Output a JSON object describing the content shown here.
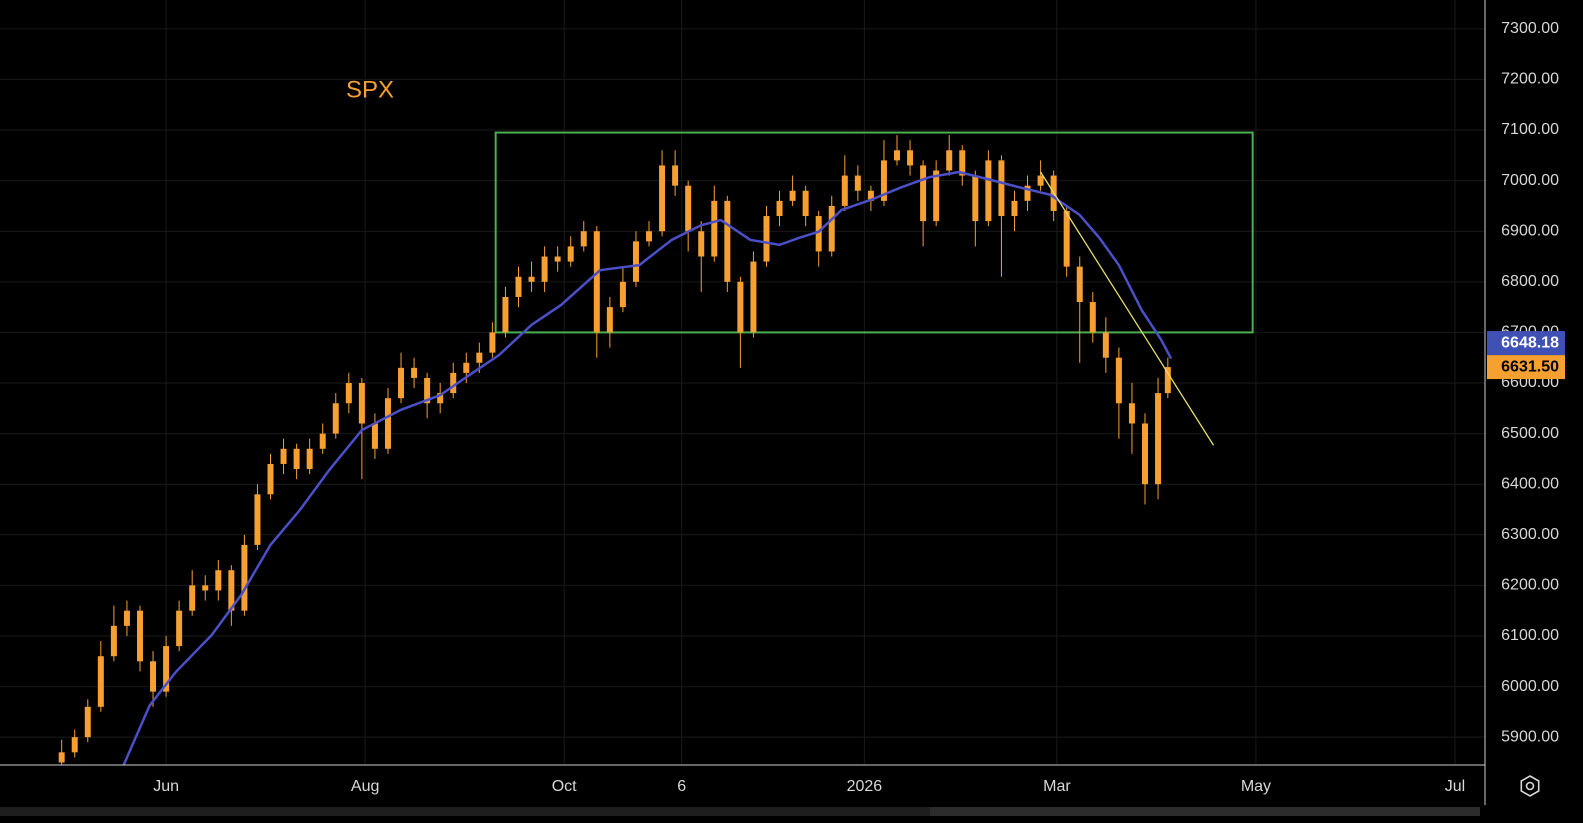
{
  "chart_data": {
    "type": "candlestick",
    "title": "SPX",
    "title_color": "#f5a030",
    "color": "#f5a030",
    "x": [
      -32,
      -28,
      -24,
      -20,
      -16,
      -12,
      -8,
      -4,
      0,
      4,
      8,
      12,
      16,
      20,
      24,
      28,
      32,
      36,
      40,
      44,
      48,
      52,
      56,
      60,
      64,
      68,
      72,
      76,
      80,
      84,
      88,
      92,
      96,
      100,
      104,
      108,
      112,
      116,
      120,
      124,
      128,
      132,
      136,
      140,
      144,
      148,
      152,
      156,
      160,
      164,
      168,
      172,
      176,
      180,
      184,
      188,
      192,
      196,
      200,
      204,
      208,
      212,
      216,
      220,
      224,
      228,
      232,
      236,
      240,
      244,
      248,
      252,
      256,
      260,
      264,
      268,
      272,
      276,
      280,
      284,
      288,
      292,
      296,
      300,
      304,
      307
    ],
    "ohlc": [
      [
        5850,
        5895,
        5840,
        5870
      ],
      [
        5870,
        5915,
        5860,
        5900
      ],
      [
        5900,
        5975,
        5890,
        5960
      ],
      [
        5960,
        6090,
        5950,
        6060
      ],
      [
        6060,
        6160,
        6050,
        6120
      ],
      [
        6120,
        6170,
        6100,
        6150
      ],
      [
        6150,
        6160,
        6030,
        6050
      ],
      [
        6050,
        6070,
        5960,
        5990
      ],
      [
        5990,
        6100,
        5980,
        6080
      ],
      [
        6080,
        6170,
        6070,
        6150
      ],
      [
        6150,
        6230,
        6140,
        6200
      ],
      [
        6200,
        6220,
        6170,
        6190
      ],
      [
        6190,
        6250,
        6170,
        6230
      ],
      [
        6230,
        6240,
        6120,
        6150
      ],
      [
        6150,
        6300,
        6140,
        6280
      ],
      [
        6280,
        6400,
        6270,
        6380
      ],
      [
        6380,
        6460,
        6370,
        6440
      ],
      [
        6440,
        6490,
        6420,
        6470
      ],
      [
        6470,
        6480,
        6410,
        6430
      ],
      [
        6430,
        6490,
        6420,
        6470
      ],
      [
        6470,
        6520,
        6460,
        6500
      ],
      [
        6500,
        6580,
        6490,
        6560
      ],
      [
        6560,
        6620,
        6540,
        6600
      ],
      [
        6600,
        6610,
        6410,
        6520
      ],
      [
        6520,
        6540,
        6450,
        6470
      ],
      [
        6470,
        6590,
        6460,
        6570
      ],
      [
        6570,
        6660,
        6560,
        6630
      ],
      [
        6630,
        6650,
        6590,
        6610
      ],
      [
        6610,
        6620,
        6530,
        6560
      ],
      [
        6560,
        6600,
        6540,
        6580
      ],
      [
        6580,
        6640,
        6570,
        6620
      ],
      [
        6620,
        6660,
        6600,
        6640
      ],
      [
        6640,
        6680,
        6620,
        6660
      ],
      [
        6660,
        6720,
        6650,
        6700
      ],
      [
        6700,
        6790,
        6690,
        6770
      ],
      [
        6770,
        6830,
        6750,
        6810
      ],
      [
        6810,
        6840,
        6780,
        6800
      ],
      [
        6800,
        6870,
        6780,
        6850
      ],
      [
        6850,
        6870,
        6820,
        6840
      ],
      [
        6840,
        6890,
        6830,
        6870
      ],
      [
        6870,
        6920,
        6860,
        6900
      ],
      [
        6900,
        6910,
        6650,
        6700
      ],
      [
        6700,
        6770,
        6670,
        6750
      ],
      [
        6750,
        6830,
        6740,
        6800
      ],
      [
        6800,
        6900,
        6790,
        6880
      ],
      [
        6880,
        6920,
        6870,
        6900
      ],
      [
        6900,
        7060,
        6890,
        7030
      ],
      [
        7030,
        7060,
        6970,
        6990
      ],
      [
        6990,
        7000,
        6860,
        6900
      ],
      [
        6900,
        6920,
        6780,
        6850
      ],
      [
        6850,
        6990,
        6840,
        6960
      ],
      [
        6960,
        6970,
        6780,
        6800
      ],
      [
        6800,
        6810,
        6630,
        6700
      ],
      [
        6700,
        6860,
        6690,
        6840
      ],
      [
        6840,
        6950,
        6830,
        6930
      ],
      [
        6930,
        6980,
        6910,
        6960
      ],
      [
        6960,
        7010,
        6950,
        6980
      ],
      [
        6980,
        6990,
        6910,
        6930
      ],
      [
        6930,
        6940,
        6830,
        6860
      ],
      [
        6860,
        6970,
        6850,
        6950
      ],
      [
        6950,
        7050,
        6940,
        7010
      ],
      [
        7010,
        7030,
        6960,
        6980
      ],
      [
        6980,
        6990,
        6940,
        6960
      ],
      [
        6960,
        7080,
        6950,
        7040
      ],
      [
        7040,
        7090,
        7030,
        7060
      ],
      [
        7060,
        7080,
        7010,
        7030
      ],
      [
        7030,
        7040,
        6870,
        6920
      ],
      [
        6920,
        7040,
        6910,
        7020
      ],
      [
        7020,
        7090,
        7010,
        7060
      ],
      [
        7060,
        7070,
        6990,
        7010
      ],
      [
        7010,
        7020,
        6870,
        6920
      ],
      [
        6920,
        7060,
        6910,
        7040
      ],
      [
        7040,
        7050,
        6810,
        6930
      ],
      [
        6930,
        6980,
        6900,
        6960
      ],
      [
        6960,
        7010,
        6940,
        6990
      ],
      [
        6990,
        7040,
        6980,
        7010
      ],
      [
        7010,
        7020,
        6920,
        6940
      ],
      [
        6940,
        6950,
        6810,
        6830
      ],
      [
        6830,
        6850,
        6640,
        6760
      ],
      [
        6760,
        6780,
        6680,
        6700
      ],
      [
        6700,
        6730,
        6620,
        6650
      ],
      [
        6650,
        6670,
        6490,
        6560
      ],
      [
        6560,
        6600,
        6460,
        6520
      ],
      [
        6520,
        6540,
        6360,
        6400
      ],
      [
        6400,
        6610,
        6370,
        6580
      ],
      [
        6580,
        6650,
        6570,
        6631.5
      ]
    ],
    "ma": {
      "color": "#4b50c8",
      "x": [
        -13,
        -5,
        3,
        14,
        23,
        32,
        41,
        50,
        60,
        72,
        84,
        93,
        102,
        112,
        121,
        133,
        145,
        155,
        164,
        170,
        179,
        188,
        194,
        200,
        207,
        216,
        225,
        234,
        243,
        253,
        262,
        271,
        280,
        286,
        292,
        299,
        305,
        308
      ],
      "values": [
        5845,
        5963,
        6029,
        6102,
        6181,
        6280,
        6349,
        6428,
        6507,
        6547,
        6576,
        6616,
        6655,
        6715,
        6754,
        6823,
        6833,
        6883,
        6912,
        6922,
        6883,
        6873,
        6887,
        6899,
        6942,
        6962,
        6986,
        7007,
        7017,
        7001,
        6986,
        6972,
        6932,
        6887,
        6833,
        6744,
        6685,
        6648.18
      ]
    },
    "box": {
      "x": [
        101,
        333
      ],
      "y": [
        6700,
        7095
      ],
      "color": "#4caf50"
    },
    "trendline": {
      "x": [
        268,
        321
      ],
      "y": [
        7017,
        6477
      ],
      "color": "#e8dc6a"
    },
    "last_labels": [
      {
        "value": 6648.18,
        "label": "6648.18",
        "color": "#3f51b5"
      },
      {
        "value": 6631.5,
        "label": "6631.50",
        "color": "#f5a030"
      }
    ],
    "xlim": [
      -50.9,
      404.2
    ],
    "xticks": [
      {
        "value": 0,
        "label": "Jun"
      },
      {
        "value": 61,
        "label": "Aug"
      },
      {
        "value": 122,
        "label": "Oct"
      },
      {
        "value": 158,
        "label": "6"
      },
      {
        "value": 214,
        "label": "2026"
      },
      {
        "value": 273,
        "label": "Mar"
      },
      {
        "value": 334,
        "label": "May"
      },
      {
        "value": 395,
        "label": "Jul"
      }
    ],
    "ylim": [
      5845,
      7357
    ],
    "yticks": [
      {
        "value": 5900,
        "label": "5900.00"
      },
      {
        "value": 6000,
        "label": "6000.00"
      },
      {
        "value": 6100,
        "label": "6100.00"
      },
      {
        "value": 6200,
        "label": "6200.00"
      },
      {
        "value": 6300,
        "label": "6300.00"
      },
      {
        "value": 6400,
        "label": "6400.00"
      },
      {
        "value": 6500,
        "label": "6500.00"
      },
      {
        "value": 6600,
        "label": "6600.00"
      },
      {
        "value": 6700,
        "label": "6700.00"
      },
      {
        "value": 6800,
        "label": "6800.00"
      },
      {
        "value": 6900,
        "label": "6900.00"
      },
      {
        "value": 7000,
        "label": "7000.00"
      },
      {
        "value": 7100,
        "label": "7100.00"
      },
      {
        "value": 7200,
        "label": "7200.00"
      },
      {
        "value": 7300,
        "label": "7300.00"
      }
    ],
    "grid": true
  }
}
